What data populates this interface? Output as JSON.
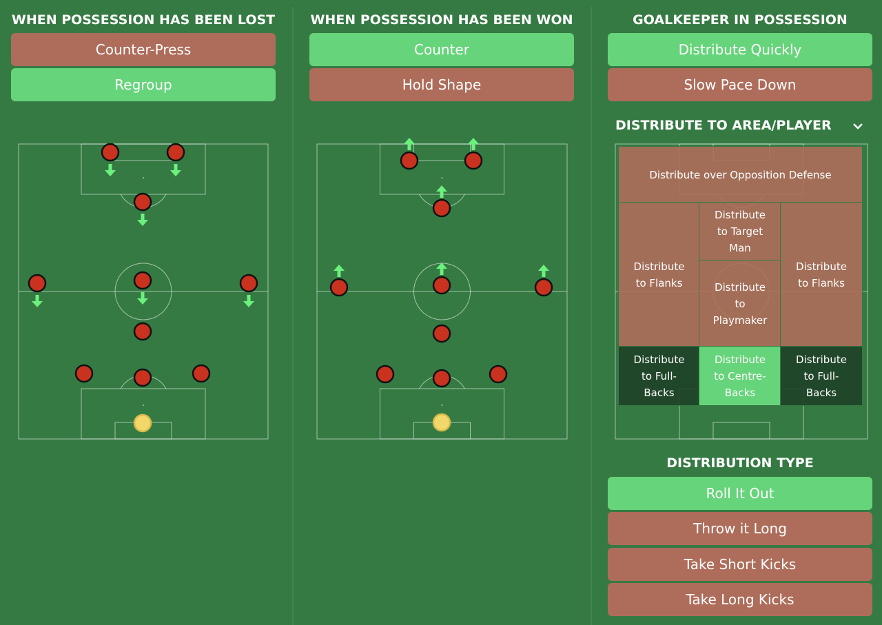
{
  "columns": [
    {
      "title": "WHEN POSSESSION HAS BEEN LOST",
      "options": [
        {
          "label": "Counter-Press",
          "selected": false
        },
        {
          "label": "Regroup",
          "selected": true
        }
      ]
    },
    {
      "title": "WHEN POSSESSION HAS BEEN WON",
      "options": [
        {
          "label": "Counter",
          "selected": true
        },
        {
          "label": "Hold Shape",
          "selected": false
        }
      ]
    },
    {
      "title": "GOALKEEPER IN POSSESSION",
      "options": [
        {
          "label": "Distribute Quickly",
          "selected": true
        },
        {
          "label": "Slow Pace Down",
          "selected": false
        }
      ]
    }
  ],
  "distribution_area": {
    "title": "DISTRIBUTE TO AREA/PLAYER",
    "zones": [
      {
        "label": "Distribute over Opposition Defense",
        "state": "available"
      },
      {
        "label": "Distribute to Flanks",
        "state": "available"
      },
      {
        "label": "Distribute to Target Man",
        "state": "available"
      },
      {
        "label": "Distribute to Playmaker",
        "state": "available"
      },
      {
        "label": "Distribute to Flanks",
        "state": "available"
      },
      {
        "label": "Distribute to Full-Backs",
        "state": "unavailable"
      },
      {
        "label": "Distribute to Centre-Backs",
        "state": "selected"
      },
      {
        "label": "Distribute to Full-Backs",
        "state": "unavailable"
      }
    ]
  },
  "distribution_type": {
    "title": "DISTRIBUTION TYPE",
    "options": [
      {
        "label": "Roll It Out",
        "selected": true
      },
      {
        "label": "Throw it Long",
        "selected": false
      },
      {
        "label": "Take Short Kicks",
        "selected": false
      },
      {
        "label": "Take Long Kicks",
        "selected": false
      }
    ]
  }
}
